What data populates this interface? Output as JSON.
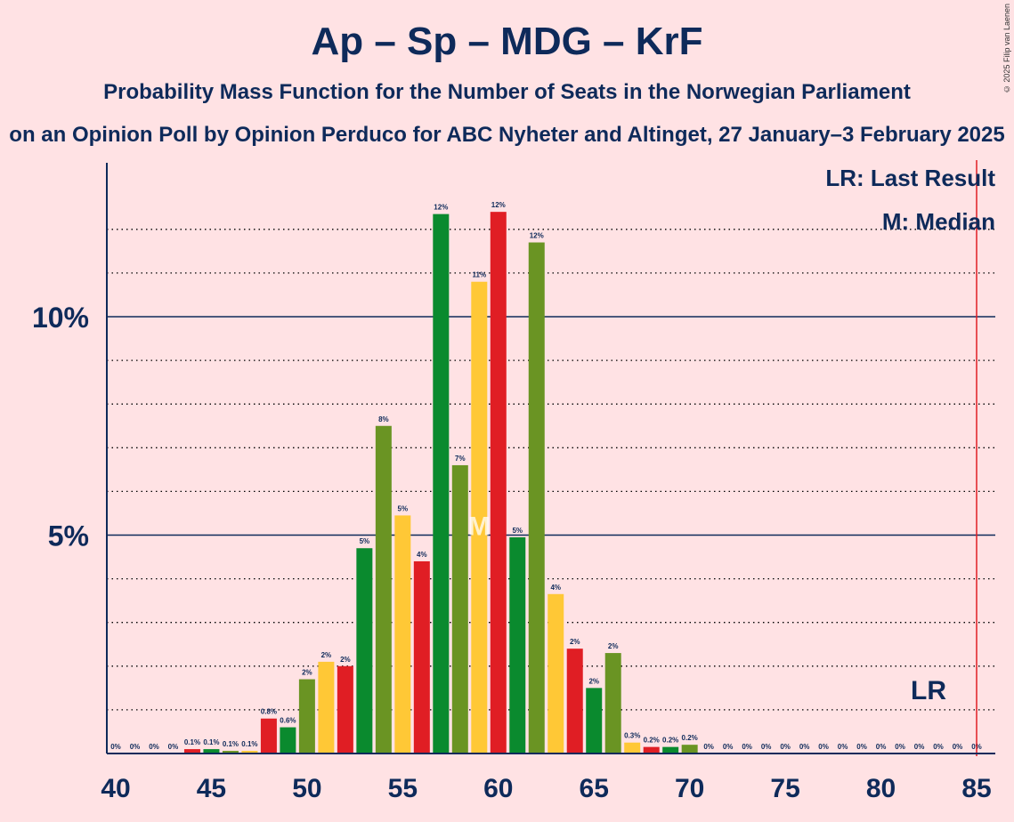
{
  "title": "Ap – Sp – MDG – KrF",
  "subtitle": "Probability Mass Function for the Number of Seats in the Norwegian Parliament",
  "subtitle2": "on an Opinion Poll by Opinion Perduco for ABC Nyheter and Altinget, 27 January–3 February 2025",
  "copyright": "© 2025 Filip van Laenen",
  "legend": {
    "lr": "LR: Last Result",
    "m": "M: Median"
  },
  "markers": {
    "lr_label": "LR",
    "median_label": "M"
  },
  "colors": {
    "background": "#FFE2E4",
    "green": "#0A8A2E",
    "olive": "#6A9423",
    "yellow": "#FFC836",
    "red": "#E01E24",
    "navy": "#0E2A5A",
    "lr_line": "#E01E24"
  },
  "chart_data": {
    "type": "bar",
    "xlabel": "",
    "ylabel": "",
    "xlim": [
      40,
      85
    ],
    "ylim": [
      0,
      13.5
    ],
    "x_ticks": [
      40,
      45,
      50,
      55,
      60,
      65,
      70,
      75,
      80,
      85
    ],
    "y_ticks": [
      {
        "value": 5,
        "label": "5%"
      },
      {
        "value": 10,
        "label": "10%"
      }
    ],
    "last_result": 85,
    "median": 59,
    "bars": [
      {
        "seats": 40,
        "value": 0,
        "label": "0%",
        "color": "green"
      },
      {
        "seats": 41,
        "value": 0,
        "label": "0%",
        "color": "olive"
      },
      {
        "seats": 42,
        "value": 0,
        "label": "0%",
        "color": "yellow"
      },
      {
        "seats": 43,
        "value": 0,
        "label": "0%",
        "color": "red"
      },
      {
        "seats": 44,
        "value": 0.1,
        "label": "0.1%",
        "color": "red"
      },
      {
        "seats": 45,
        "value": 0.1,
        "label": "0.1%",
        "color": "green"
      },
      {
        "seats": 46,
        "value": 0.06,
        "label": "0.1%",
        "color": "olive"
      },
      {
        "seats": 47,
        "value": 0.06,
        "label": "0.1%",
        "color": "yellow"
      },
      {
        "seats": 48,
        "value": 0.8,
        "label": "0.8%",
        "color": "red"
      },
      {
        "seats": 49,
        "value": 0.6,
        "label": "0.6%",
        "color": "green"
      },
      {
        "seats": 50,
        "value": 1.7,
        "label": "2%",
        "color": "olive"
      },
      {
        "seats": 51,
        "value": 2.1,
        "label": "2%",
        "color": "yellow"
      },
      {
        "seats": 52,
        "value": 2.0,
        "label": "2%",
        "color": "red"
      },
      {
        "seats": 53,
        "value": 4.7,
        "label": "5%",
        "color": "green"
      },
      {
        "seats": 54,
        "value": 7.5,
        "label": "8%",
        "color": "olive"
      },
      {
        "seats": 55,
        "value": 5.45,
        "label": "5%",
        "color": "yellow"
      },
      {
        "seats": 56,
        "value": 4.4,
        "label": "4%",
        "color": "red"
      },
      {
        "seats": 57,
        "value": 12.35,
        "label": "12%",
        "color": "green"
      },
      {
        "seats": 58,
        "value": 6.6,
        "label": "7%",
        "color": "olive"
      },
      {
        "seats": 59,
        "value": 10.8,
        "label": "11%",
        "color": "yellow"
      },
      {
        "seats": 60,
        "value": 12.4,
        "label": "12%",
        "color": "red"
      },
      {
        "seats": 61,
        "value": 4.95,
        "label": "5%",
        "color": "green"
      },
      {
        "seats": 62,
        "value": 11.7,
        "label": "12%",
        "color": "olive"
      },
      {
        "seats": 63,
        "value": 3.65,
        "label": "4%",
        "color": "yellow"
      },
      {
        "seats": 64,
        "value": 2.4,
        "label": "2%",
        "color": "red"
      },
      {
        "seats": 65,
        "value": 1.5,
        "label": "2%",
        "color": "green"
      },
      {
        "seats": 66,
        "value": 2.3,
        "label": "2%",
        "color": "olive"
      },
      {
        "seats": 67,
        "value": 0.25,
        "label": "0.3%",
        "color": "yellow"
      },
      {
        "seats": 68,
        "value": 0.15,
        "label": "0.2%",
        "color": "red"
      },
      {
        "seats": 69,
        "value": 0.15,
        "label": "0.2%",
        "color": "green"
      },
      {
        "seats": 70,
        "value": 0.2,
        "label": "0.2%",
        "color": "olive"
      },
      {
        "seats": 71,
        "value": 0,
        "label": "0%",
        "color": "yellow"
      },
      {
        "seats": 72,
        "value": 0,
        "label": "0%",
        "color": "red"
      },
      {
        "seats": 73,
        "value": 0,
        "label": "0%",
        "color": "green"
      },
      {
        "seats": 74,
        "value": 0,
        "label": "0%",
        "color": "olive"
      },
      {
        "seats": 75,
        "value": 0,
        "label": "0%",
        "color": "yellow"
      },
      {
        "seats": 76,
        "value": 0,
        "label": "0%",
        "color": "red"
      },
      {
        "seats": 77,
        "value": 0,
        "label": "0%",
        "color": "green"
      },
      {
        "seats": 78,
        "value": 0,
        "label": "0%",
        "color": "olive"
      },
      {
        "seats": 79,
        "value": 0,
        "label": "0%",
        "color": "yellow"
      },
      {
        "seats": 80,
        "value": 0,
        "label": "0%",
        "color": "red"
      },
      {
        "seats": 81,
        "value": 0,
        "label": "0%",
        "color": "green"
      },
      {
        "seats": 82,
        "value": 0,
        "label": "0%",
        "color": "olive"
      },
      {
        "seats": 83,
        "value": 0,
        "label": "0%",
        "color": "yellow"
      },
      {
        "seats": 84,
        "value": 0,
        "label": "0%",
        "color": "red"
      },
      {
        "seats": 85,
        "value": 0,
        "label": "0%",
        "color": "green"
      }
    ]
  }
}
